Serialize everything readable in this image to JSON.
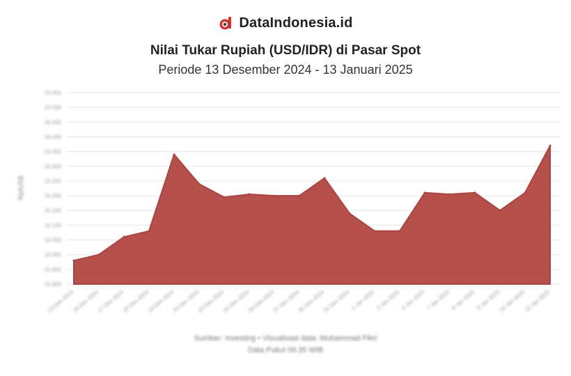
{
  "brand": {
    "name": "DataIndonesia.id",
    "logo_icon": "magnifier-logo-icon",
    "logo_color": "#d32f2f"
  },
  "header": {
    "title": "Nilai Tukar Rupiah (USD/IDR) di Pasar Spot",
    "subtitle": "Periode 13 Desember 2024 - 13 Januari 2025"
  },
  "footer": {
    "source": "Sumber: Investing • Visualisasi data: Muhammad Fikri",
    "note": "Data Pukul 09.35 WIB"
  },
  "chart_data": {
    "type": "area",
    "title": "Nilai Tukar Rupiah (USD/IDR) di Pasar Spot",
    "subtitle": "Periode 13 Desember 2024 - 13 Januari 2025",
    "ylabel": "Rp/US$",
    "x": [
      "13 Des 2024",
      "16 Des 2024",
      "17 Des 2024",
      "18 Des 2024",
      "19 Des 2024",
      "20 Des 2024",
      "23 Des 2024",
      "24 Des 2024",
      "26 Des 2024",
      "27 Des 2024",
      "30 Des 2024",
      "31 Des 2024",
      "2 Jan 2025",
      "3 Jan 2025",
      "6 Jan 2025",
      "7 Jan 2025",
      "8 Jan 2025",
      "9 Jan 2025",
      "10 Jan 2025",
      "13 Jan 2025"
    ],
    "values": [
      15980,
      16000,
      16060,
      16080,
      16340,
      16240,
      16195,
      16205,
      16200,
      16200,
      16260,
      16140,
      16080,
      16080,
      16210,
      16205,
      16210,
      16150,
      16210,
      16370
    ],
    "yticks": [
      15900,
      15950,
      16000,
      16050,
      16100,
      16150,
      16200,
      16250,
      16300,
      16350,
      16400,
      16450,
      16500,
      16550
    ],
    "ylim": [
      15900,
      16550
    ],
    "area_color": "#b5504c",
    "grid": true
  }
}
